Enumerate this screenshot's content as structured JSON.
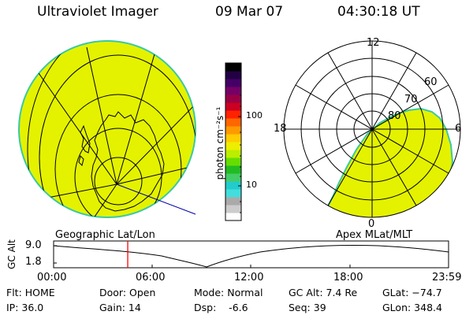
{
  "header": {
    "instrument": "Ultraviolet Imager",
    "date": "09 Mar 07",
    "time": "04:30:18 UT"
  },
  "colorbar": {
    "unit_label": "photon cm⁻²s⁻¹",
    "ticks": [
      "100",
      "10"
    ],
    "colors": [
      "#ffffff",
      "#cccccc",
      "#aaaaaa",
      "#44dddd",
      "#22cccc",
      "#44cc66",
      "#22bb22",
      "#66dd00",
      "#bbee00",
      "#eeee00",
      "#ffcc00",
      "#ff9900",
      "#ff6600",
      "#ff2200",
      "#cc0022",
      "#990044",
      "#770066",
      "#440066",
      "#220044",
      "#000000"
    ]
  },
  "geo_panel": {
    "label": "Geographic Lat/Lon",
    "fill_color": "#e4f200"
  },
  "apex_panel": {
    "label": "Apex MLat/MLT",
    "mlt_labels": [
      "12",
      "18",
      "6",
      "0"
    ],
    "mlat_labels": [
      "60",
      "70",
      "80"
    ],
    "fill_color": "#e4f200"
  },
  "altitude_plot": {
    "ylabel": "GC Alt",
    "yticks": [
      "9.0",
      "1.8"
    ],
    "xticks": [
      "00:00",
      "06:00",
      "12:00",
      "18:00",
      "23:59"
    ],
    "marker_time_hours": 4.505,
    "marker_color": "#ff0000"
  },
  "status": {
    "flt": "Flt: HOME",
    "ip": "IP: 36.0",
    "door": "Door: Open",
    "gain": "Gain: 14",
    "mode": "Mode: Normal",
    "dsp": "Dsp:    -6.6",
    "gc_alt": "GC Alt: 7.4 Re",
    "seq": "Seq: 39",
    "glat": "GLat: −74.7",
    "glon": "GLon: 348.4"
  }
}
